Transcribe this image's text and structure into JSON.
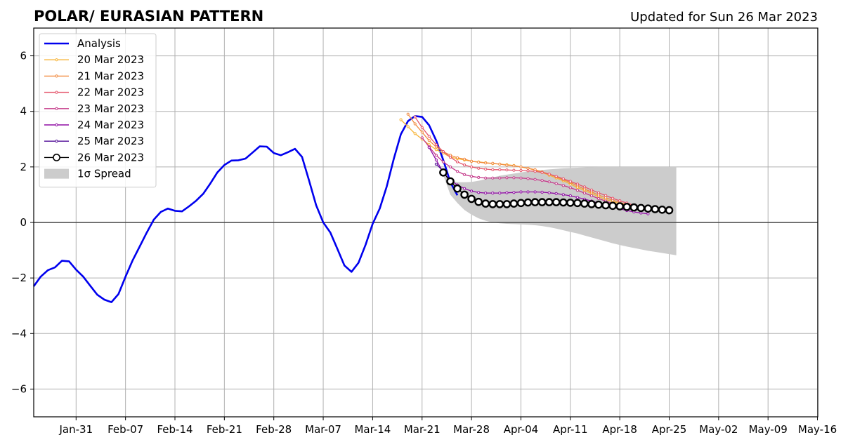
{
  "chart_data": {
    "type": "line",
    "title": "POLAR/ EURASIAN  PATTERN",
    "subtitle": "Updated for Sun 26 Mar 2023",
    "ylim": [
      -7,
      7
    ],
    "yticks": [
      -6,
      -4,
      -2,
      0,
      2,
      4,
      6
    ],
    "yticklabels": [
      "−6",
      "−4",
      "−2",
      "0",
      "2",
      "4",
      "6"
    ],
    "xticklabels": [
      "Jan-31",
      "Feb-07",
      "Feb-14",
      "Feb-21",
      "Feb-28",
      "Mar-07",
      "Mar-14",
      "Mar-21",
      "Mar-28",
      "Apr-04",
      "Apr-11",
      "Apr-18",
      "Apr-25",
      "May-02",
      "May-09",
      "May-16"
    ],
    "legend_position": "top-left",
    "grid": true,
    "analysis": {
      "name": "Analysis",
      "color": "#0000ee",
      "values": [
        -2.3,
        -1.95,
        -1.72,
        -1.62,
        -1.38,
        -1.4,
        -1.7,
        -1.95,
        -2.28,
        -2.6,
        -2.78,
        -2.87,
        -2.58,
        -1.95,
        -1.37,
        -0.87,
        -0.37,
        0.1,
        0.38,
        0.5,
        0.42,
        0.4,
        0.58,
        0.78,
        1.03,
        1.4,
        1.8,
        2.07,
        2.23,
        2.24,
        2.3,
        2.52,
        2.74,
        2.73,
        2.5,
        2.42,
        2.53,
        2.65,
        2.36,
        1.5,
        0.62,
        0.0,
        -0.36,
        -0.95,
        -1.55,
        -1.78,
        -1.45,
        -0.8,
        -0.05,
        0.5,
        1.3,
        2.3,
        3.18,
        3.65,
        3.83,
        3.8,
        3.5,
        2.95,
        2.25,
        1.45,
        0.98
      ]
    },
    "forecasts": [
      {
        "name": "20 Mar 2023",
        "color": "#f7b335",
        "values": [
          3.7,
          3.45,
          3.2,
          3.0,
          2.8,
          2.62,
          2.5,
          2.35,
          2.3,
          2.25,
          2.2,
          2.18,
          2.15,
          2.12,
          2.1,
          2.08,
          2.05,
          2.0,
          1.95,
          1.88,
          1.8,
          1.7,
          1.6,
          1.5,
          1.38,
          1.26,
          1.15,
          1.04,
          0.93,
          0.83,
          0.75,
          0.68,
          0.62,
          0.57,
          0.52
        ]
      },
      {
        "name": "21 Mar 2023",
        "color": "#f18a3f",
        "values": [
          3.9,
          3.55,
          3.25,
          2.95,
          2.72,
          2.55,
          2.42,
          2.33,
          2.28,
          2.2,
          2.17,
          2.14,
          2.13,
          2.1,
          2.06,
          2.04,
          2.0,
          1.95,
          1.9,
          1.82,
          1.74,
          1.64,
          1.54,
          1.44,
          1.32,
          1.2,
          1.1,
          0.99,
          0.89,
          0.8,
          0.72,
          0.65,
          0.6,
          0.55,
          0.5
        ]
      },
      {
        "name": "22 Mar 2023",
        "color": "#e5566c",
        "values": [
          3.8,
          3.42,
          3.1,
          2.8,
          2.55,
          2.35,
          2.18,
          2.07,
          2.0,
          1.95,
          1.92,
          1.9,
          1.9,
          1.89,
          1.88,
          1.87,
          1.86,
          1.84,
          1.8,
          1.74,
          1.66,
          1.57,
          1.48,
          1.38,
          1.28,
          1.17,
          1.07,
          0.97,
          0.87,
          0.78,
          0.7,
          0.62,
          0.55
        ]
      },
      {
        "name": "23 Mar 2023",
        "color": "#c4398a",
        "values": [
          3.05,
          2.72,
          2.42,
          2.18,
          2.0,
          1.84,
          1.72,
          1.66,
          1.62,
          1.6,
          1.6,
          1.6,
          1.61,
          1.61,
          1.6,
          1.58,
          1.55,
          1.51,
          1.46,
          1.4,
          1.33,
          1.25,
          1.16,
          1.06,
          0.96,
          0.86,
          0.77,
          0.68,
          0.6,
          0.52
        ]
      },
      {
        "name": "24 Mar 2023",
        "color": "#8f0da4",
        "values": [
          2.7,
          2.25,
          1.8,
          1.52,
          1.35,
          1.22,
          1.13,
          1.08,
          1.06,
          1.06,
          1.06,
          1.07,
          1.08,
          1.1,
          1.1,
          1.1,
          1.09,
          1.07,
          1.04,
          1.0,
          0.96,
          0.9,
          0.84,
          0.77,
          0.7,
          0.63,
          0.56,
          0.49,
          0.43,
          0.38,
          0.34,
          0.31
        ]
      },
      {
        "name": "25 Mar 2023",
        "color": "#4d0a94",
        "values": [
          2.1,
          1.85
        ]
      },
      {
        "name": "26 Mar 2023",
        "color": "#000000",
        "marker": "circle",
        "values": [
          1.8,
          1.48,
          1.22,
          1.0,
          0.85,
          0.74,
          0.68,
          0.66,
          0.66,
          0.66,
          0.68,
          0.7,
          0.72,
          0.73,
          0.73,
          0.73,
          0.73,
          0.72,
          0.71,
          0.7,
          0.68,
          0.66,
          0.64,
          0.62,
          0.6,
          0.58,
          0.56,
          0.54,
          0.52,
          0.5,
          0.48,
          0.46,
          0.44
        ]
      }
    ],
    "spread": {
      "name": "1σ Spread",
      "color": "#cccccc",
      "upper": [
        1.7,
        1.52,
        1.45,
        1.45,
        1.46,
        1.5,
        1.56,
        1.62,
        1.68,
        1.72,
        1.76,
        1.8,
        1.84,
        1.87,
        1.89,
        1.91,
        1.93,
        1.95,
        1.96,
        1.97,
        1.98,
        1.99,
        2.0,
        2.0,
        2.0,
        2.0,
        2.0,
        2.0,
        2.0,
        2.0,
        2.0,
        2.0,
        2.0,
        2.0
      ],
      "lower": [
        1.7,
        1.0,
        0.7,
        0.45,
        0.28,
        0.15,
        0.06,
        0.0,
        -0.03,
        -0.05,
        -0.06,
        -0.07,
        -0.08,
        -0.1,
        -0.13,
        -0.17,
        -0.22,
        -0.28,
        -0.34,
        -0.4,
        -0.47,
        -0.54,
        -0.61,
        -0.68,
        -0.75,
        -0.81,
        -0.87,
        -0.92,
        -0.97,
        -1.02,
        -1.06,
        -1.1,
        -1.14,
        -1.18
      ]
    }
  }
}
